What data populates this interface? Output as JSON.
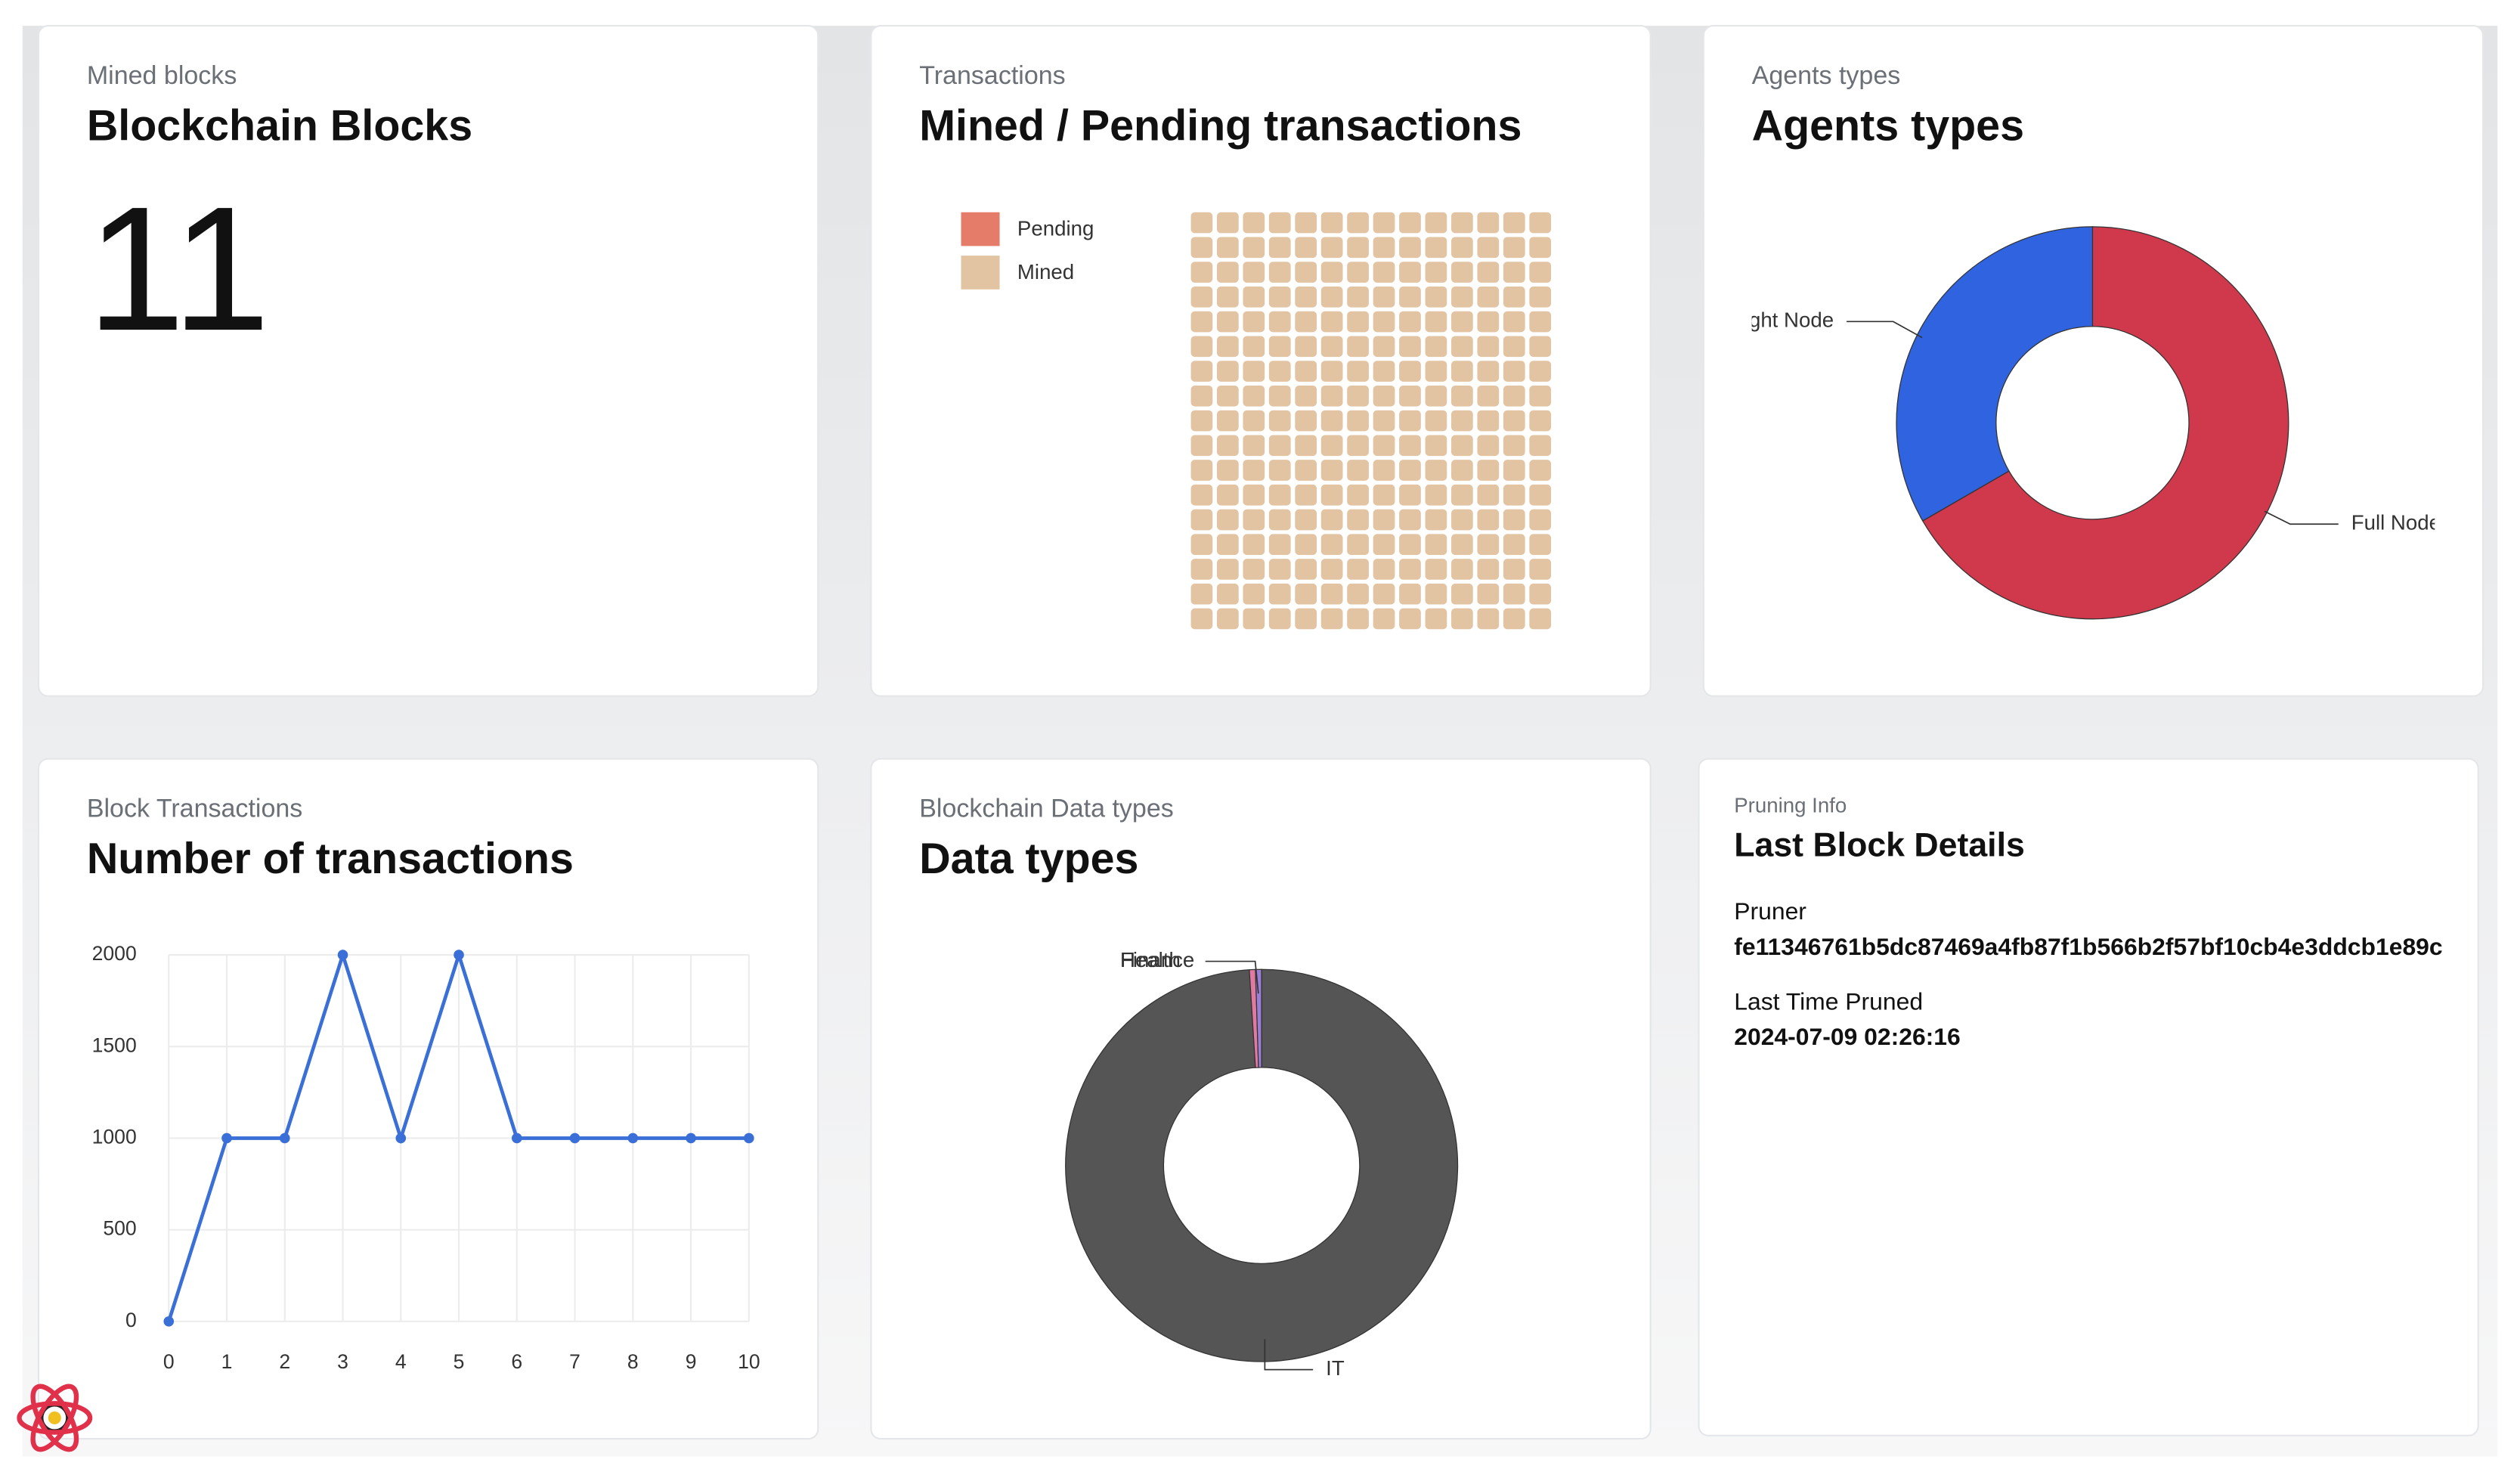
{
  "cards": [
    {
      "subtitle": "Mined blocks",
      "title": "Blockchain Blocks",
      "value": 11
    },
    {
      "subtitle": "Transactions",
      "title": "Mined / Pending transactions"
    },
    {
      "subtitle": "Agents types",
      "title": "Agents types"
    },
    {
      "subtitle": "Block Transactions",
      "title": "Number of transactions"
    },
    {
      "subtitle": "Blockchain Data types",
      "title": "Data types"
    },
    {
      "subtitle": "Pruning Info",
      "title": "Last Block Details",
      "fields": [
        {
          "label": "Pruner",
          "value": "fe11346761b5dc87469a4fb87f1b566b2f57bf10cb4e3ddcb1e89c"
        },
        {
          "label": "Last Time Pruned",
          "value": "2024-07-09 02:26:16"
        }
      ]
    }
  ],
  "chart_data": [
    {
      "type": "waffle",
      "categories": [
        "Pending",
        "Mined"
      ],
      "values": [
        0,
        12000
      ],
      "colors": [
        "#e57c6a",
        "#e2c4a2"
      ]
    },
    {
      "type": "donut",
      "categories": [
        "Full Node",
        "Light Node"
      ],
      "values": [
        2,
        1
      ],
      "colors": [
        "#d0384b",
        "#2f63e0"
      ]
    },
    {
      "type": "line",
      "x": [
        0,
        1,
        2,
        3,
        4,
        5,
        6,
        7,
        8,
        9,
        10
      ],
      "values": [
        0,
        1000,
        1000,
        2000,
        1000,
        2000,
        1000,
        1000,
        1000,
        1000,
        1000
      ],
      "color": "#3b6fd8",
      "xlim": [
        0,
        10
      ],
      "xticks": [
        0,
        1,
        2,
        3,
        4,
        5,
        6,
        7,
        8,
        9,
        10
      ],
      "ylim": [
        0,
        2000
      ],
      "yticks": [
        0,
        500,
        1000,
        1500,
        2000
      ],
      "grid": true
    },
    {
      "type": "donut",
      "categories": [
        "IT",
        "Finance",
        "Health"
      ],
      "values": [
        99,
        0.5,
        0.5
      ],
      "colors": [
        "#555555",
        "#e07aa0",
        "#9b7fd6"
      ]
    }
  ]
}
